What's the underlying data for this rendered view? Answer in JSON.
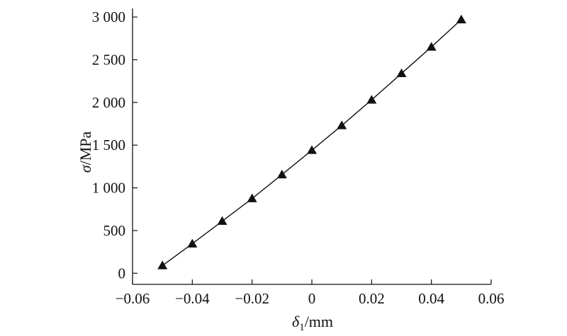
{
  "chart_data": {
    "type": "line",
    "marker": "triangle",
    "xlabel_symbol": "δ",
    "xlabel_subscript": "1",
    "xlabel_unit": "/mm",
    "ylabel_symbol": "σ",
    "ylabel_unit": "/MPa",
    "xlim": [
      -0.06,
      0.06
    ],
    "ylim": [
      -130,
      3100
    ],
    "x_ticks": [
      -0.06,
      -0.04,
      -0.02,
      0,
      0.02,
      0.04,
      0.06
    ],
    "x_tick_labels": [
      "−0.06",
      "−0.04",
      "−0.02",
      "0",
      "0.02",
      "0.04",
      "0.06"
    ],
    "y_ticks": [
      0,
      500,
      1000,
      1500,
      2000,
      2500,
      3000
    ],
    "y_tick_labels": [
      "0",
      "500",
      "1 000",
      "1 500",
      "2 000",
      "2 500",
      "3 000"
    ],
    "grid": false,
    "series": [
      {
        "x": [
          -0.05,
          -0.04,
          -0.03,
          -0.02,
          -0.01,
          0,
          0.01,
          0.02,
          0.03,
          0.04,
          0.05
        ],
        "y": [
          90,
          345,
          610,
          875,
          1155,
          1440,
          1730,
          2030,
          2340,
          2650,
          2970
        ],
        "color": "#111111"
      }
    ]
  }
}
